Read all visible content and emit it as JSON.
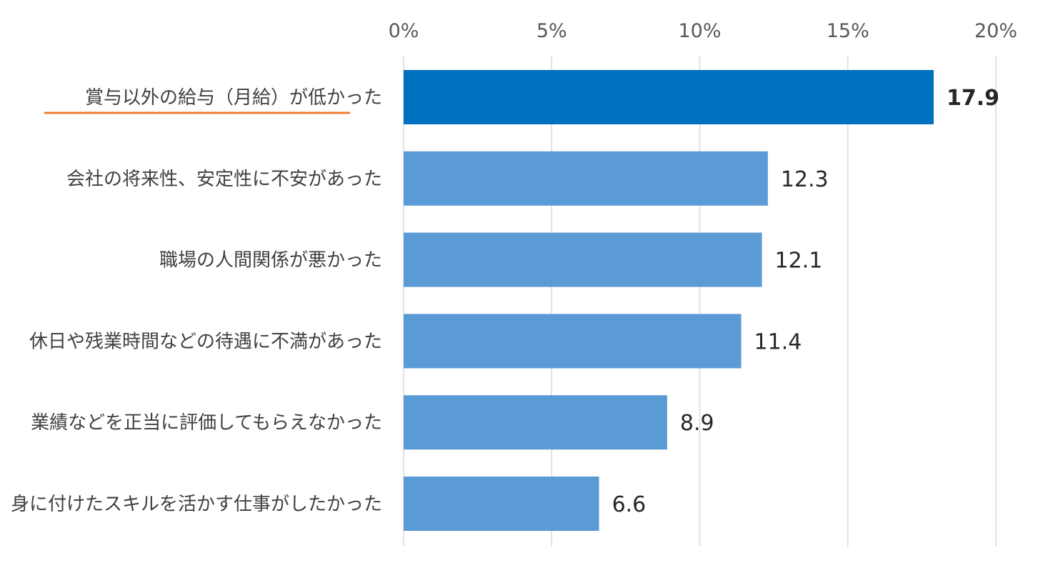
{
  "chart_data": {
    "type": "bar",
    "orientation": "horizontal",
    "title": "",
    "xlabel": "",
    "ylabel": "",
    "xlim": [
      0,
      20
    ],
    "x_ticks": [
      0,
      5,
      10,
      15,
      20
    ],
    "x_tick_labels": [
      "0%",
      "5%",
      "10%",
      "15%",
      "20%"
    ],
    "grid": true,
    "categories": [
      "賞与以外の給与（月給）が低かった",
      "会社の将来性、安定性に不安があった",
      "職場の人間関係が悪かった",
      "休日や残業時間などの待遇に不満があった",
      "業績などを正当に評価してもらえなかった",
      "身に付けたスキルを活かす仕事がしたかった"
    ],
    "values": [
      17.9,
      12.3,
      12.1,
      11.4,
      8.9,
      6.6
    ],
    "value_labels": [
      "17.9",
      "12.3",
      "12.1",
      "11.4",
      "8.9",
      "6.6"
    ],
    "highlight_index": 0,
    "colors": {
      "highlight_bar": "#0070c0",
      "bar": "#5b9bd5",
      "underline": "#ed7d31",
      "grid": "#d9d9d9"
    }
  }
}
